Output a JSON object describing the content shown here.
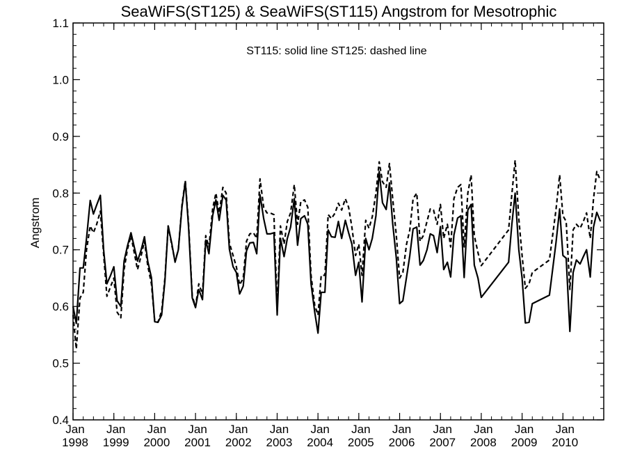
{
  "chart_data": {
    "type": "line",
    "title": "SeaWiFS(ST125) & SeaWiFS(ST115)  Angstrom for Mesotrophic",
    "ylabel": "Angstrom",
    "xlabel": "",
    "annotation": "ST115: solid line   ST125: dashed line",
    "ylim": [
      0.4,
      1.1
    ],
    "xlim": [
      1998.0,
      2011.0
    ],
    "yticks": [
      0.4,
      0.5,
      0.6,
      0.7,
      0.8,
      0.9,
      1.0,
      1.1
    ],
    "ytick_labels": [
      "0.4",
      "0.5",
      "0.6",
      "0.7",
      "0.8",
      "0.9",
      "1.0",
      "1.1"
    ],
    "xticks": [
      {
        "x": 1998,
        "month": "Jan",
        "year": "1998"
      },
      {
        "x": 1999,
        "month": "Jan",
        "year": "1999"
      },
      {
        "x": 2000,
        "month": "Jan",
        "year": "2000"
      },
      {
        "x": 2001,
        "month": "Jan",
        "year": "2001"
      },
      {
        "x": 2002,
        "month": "Jan",
        "year": "2002"
      },
      {
        "x": 2003,
        "month": "Jan",
        "year": "2003"
      },
      {
        "x": 2004,
        "month": "Jan",
        "year": "2004"
      },
      {
        "x": 2005,
        "month": "Jan",
        "year": "2005"
      },
      {
        "x": 2006,
        "month": "Jan",
        "year": "2006"
      },
      {
        "x": 2007,
        "month": "Jan",
        "year": "2007"
      },
      {
        "x": 2008,
        "month": "Jan",
        "year": "2008"
      },
      {
        "x": 2009,
        "month": "Jan",
        "year": "2009"
      },
      {
        "x": 2010,
        "month": "Jan",
        "year": "2010"
      }
    ],
    "grid": false,
    "series": [
      {
        "name": "ST115",
        "style": "solid",
        "color": "#000000",
        "x": [
          1998.0,
          1998.08,
          1998.17,
          1998.25,
          1998.33,
          1998.42,
          1998.5,
          1998.58,
          1998.67,
          1998.75,
          1998.83,
          1998.92,
          1999.0,
          1999.08,
          1999.17,
          1999.25,
          1999.33,
          1999.42,
          1999.5,
          1999.58,
          1999.67,
          1999.75,
          1999.83,
          1999.92,
          2000.0,
          2000.08,
          2000.17,
          2000.25,
          2000.33,
          2000.42,
          2000.5,
          2000.58,
          2000.67,
          2000.75,
          2000.83,
          2000.92,
          2001.0,
          2001.08,
          2001.17,
          2001.25,
          2001.33,
          2001.42,
          2001.5,
          2001.58,
          2001.67,
          2001.75,
          2001.83,
          2001.92,
          2002.0,
          2002.08,
          2002.17,
          2002.25,
          2002.33,
          2002.42,
          2002.5,
          2002.58,
          2002.67,
          2002.75,
          2002.83,
          2002.92,
          2003.0,
          2003.08,
          2003.17,
          2003.25,
          2003.33,
          2003.42,
          2003.5,
          2003.58,
          2003.67,
          2003.75,
          2003.83,
          2003.92,
          2004.0,
          2004.08,
          2004.17,
          2004.25,
          2004.33,
          2004.42,
          2004.5,
          2004.58,
          2004.67,
          2004.75,
          2004.83,
          2004.92,
          2005.0,
          2005.08,
          2005.17,
          2005.25,
          2005.33,
          2005.42,
          2005.5,
          2005.58,
          2005.67,
          2005.75,
          2005.83,
          2005.92,
          2006.0,
          2006.08,
          2006.17,
          2006.25,
          2006.33,
          2006.42,
          2006.5,
          2006.58,
          2006.67,
          2006.75,
          2006.83,
          2006.92,
          2007.0,
          2007.08,
          2007.17,
          2007.25,
          2007.33,
          2007.42,
          2007.5,
          2007.58,
          2007.67,
          2007.75,
          2007.83,
          2007.92,
          2008.0,
          2008.67,
          2008.75,
          2008.83,
          2008.92,
          2009.0,
          2009.08,
          2009.17,
          2009.25,
          2009.67,
          2009.83,
          2009.92,
          2010.0,
          2010.08,
          2010.17,
          2010.25,
          2010.33,
          2010.42,
          2010.5,
          2010.58,
          2010.67,
          2010.75,
          2010.83,
          2010.92
        ],
        "y": [
          0.6,
          0.57,
          0.668,
          0.668,
          0.72,
          0.787,
          0.763,
          0.779,
          0.796,
          0.7,
          0.64,
          0.655,
          0.67,
          0.61,
          0.6,
          0.68,
          0.706,
          0.73,
          0.705,
          0.68,
          0.7,
          0.723,
          0.68,
          0.651,
          0.573,
          0.572,
          0.585,
          0.645,
          0.742,
          0.711,
          0.678,
          0.7,
          0.776,
          0.82,
          0.74,
          0.615,
          0.598,
          0.63,
          0.612,
          0.717,
          0.693,
          0.76,
          0.788,
          0.752,
          0.796,
          0.788,
          0.701,
          0.67,
          0.66,
          0.622,
          0.636,
          0.698,
          0.712,
          0.713,
          0.693,
          0.797,
          0.755,
          0.728,
          0.728,
          0.73,
          0.585,
          0.72,
          0.688,
          0.72,
          0.74,
          0.79,
          0.708,
          0.755,
          0.76,
          0.745,
          0.64,
          0.59,
          0.553,
          0.625,
          0.625,
          0.735,
          0.723,
          0.722,
          0.75,
          0.72,
          0.752,
          0.73,
          0.71,
          0.655,
          0.678,
          0.608,
          0.72,
          0.7,
          0.72,
          0.76,
          0.838,
          0.783,
          0.771,
          0.818,
          0.746,
          0.685,
          0.605,
          0.61,
          0.652,
          0.69,
          0.737,
          0.74,
          0.673,
          0.681,
          0.7,
          0.728,
          0.725,
          0.695,
          0.741,
          0.665,
          0.678,
          0.652,
          0.726,
          0.756,
          0.76,
          0.651,
          0.77,
          0.78,
          0.673,
          0.65,
          0.616,
          0.678,
          0.745,
          0.8,
          0.7,
          0.65,
          0.571,
          0.572,
          0.605,
          0.62,
          0.712,
          0.772,
          0.69,
          0.685,
          0.556,
          0.66,
          0.682,
          0.675,
          0.688,
          0.7,
          0.652,
          0.74,
          0.766,
          0.75
        ]
      },
      {
        "name": "ST125",
        "style": "dashed",
        "color": "#000000",
        "x": [
          1998.0,
          1998.08,
          1998.17,
          1998.25,
          1998.33,
          1998.42,
          1998.5,
          1998.58,
          1998.67,
          1998.75,
          1998.83,
          1998.92,
          1999.0,
          1999.08,
          1999.17,
          1999.25,
          1999.33,
          1999.42,
          1999.5,
          1999.58,
          1999.67,
          1999.75,
          1999.83,
          1999.92,
          2000.0,
          2000.08,
          2000.17,
          2000.25,
          2000.33,
          2000.42,
          2000.5,
          2000.58,
          2000.67,
          2000.75,
          2000.83,
          2000.92,
          2001.0,
          2001.08,
          2001.17,
          2001.25,
          2001.33,
          2001.42,
          2001.5,
          2001.58,
          2001.67,
          2001.75,
          2001.83,
          2001.92,
          2002.0,
          2002.08,
          2002.17,
          2002.25,
          2002.33,
          2002.42,
          2002.5,
          2002.58,
          2002.67,
          2002.75,
          2002.83,
          2002.92,
          2003.0,
          2003.08,
          2003.17,
          2003.25,
          2003.33,
          2003.42,
          2003.5,
          2003.58,
          2003.67,
          2003.75,
          2003.83,
          2003.92,
          2004.0,
          2004.08,
          2004.17,
          2004.25,
          2004.33,
          2004.42,
          2004.5,
          2004.58,
          2004.67,
          2004.75,
          2004.83,
          2004.92,
          2005.0,
          2005.08,
          2005.17,
          2005.25,
          2005.33,
          2005.42,
          2005.5,
          2005.58,
          2005.67,
          2005.75,
          2005.83,
          2005.92,
          2006.0,
          2006.08,
          2006.17,
          2006.25,
          2006.33,
          2006.42,
          2006.5,
          2006.58,
          2006.67,
          2006.75,
          2006.83,
          2006.92,
          2007.0,
          2007.08,
          2007.17,
          2007.25,
          2007.33,
          2007.42,
          2007.5,
          2007.58,
          2007.67,
          2007.75,
          2007.83,
          2007.92,
          2008.0,
          2008.67,
          2008.75,
          2008.83,
          2008.92,
          2009.0,
          2009.08,
          2009.17,
          2009.25,
          2009.67,
          2009.83,
          2009.92,
          2010.0,
          2010.08,
          2010.17,
          2010.25,
          2010.33,
          2010.42,
          2010.5,
          2010.58,
          2010.67,
          2010.75,
          2010.83,
          2010.92
        ],
        "y": [
          0.585,
          0.525,
          0.615,
          0.625,
          0.7,
          0.742,
          0.73,
          0.745,
          0.768,
          0.692,
          0.618,
          0.635,
          0.65,
          0.59,
          0.58,
          0.665,
          0.7,
          0.725,
          0.695,
          0.665,
          0.69,
          0.715,
          0.672,
          0.64,
          0.575,
          0.572,
          0.592,
          0.65,
          0.742,
          0.708,
          0.68,
          0.7,
          0.78,
          0.822,
          0.746,
          0.618,
          0.6,
          0.64,
          0.622,
          0.725,
          0.705,
          0.772,
          0.8,
          0.765,
          0.81,
          0.8,
          0.712,
          0.69,
          0.67,
          0.638,
          0.65,
          0.715,
          0.728,
          0.73,
          0.72,
          0.825,
          0.775,
          0.765,
          0.765,
          0.762,
          0.6,
          0.742,
          0.71,
          0.75,
          0.765,
          0.815,
          0.745,
          0.785,
          0.788,
          0.775,
          0.655,
          0.602,
          0.585,
          0.655,
          0.655,
          0.762,
          0.755,
          0.765,
          0.782,
          0.77,
          0.79,
          0.775,
          0.74,
          0.69,
          0.71,
          0.655,
          0.752,
          0.738,
          0.758,
          0.8,
          0.855,
          0.82,
          0.81,
          0.852,
          0.79,
          0.725,
          0.65,
          0.66,
          0.71,
          0.735,
          0.79,
          0.8,
          0.715,
          0.725,
          0.75,
          0.772,
          0.77,
          0.745,
          0.78,
          0.72,
          0.745,
          0.705,
          0.79,
          0.81,
          0.815,
          0.705,
          0.8,
          0.832,
          0.725,
          0.695,
          0.672,
          0.735,
          0.798,
          0.858,
          0.755,
          0.69,
          0.632,
          0.64,
          0.66,
          0.682,
          0.77,
          0.832,
          0.76,
          0.75,
          0.63,
          0.735,
          0.745,
          0.738,
          0.75,
          0.765,
          0.72,
          0.79,
          0.838,
          0.822
        ]
      }
    ]
  }
}
